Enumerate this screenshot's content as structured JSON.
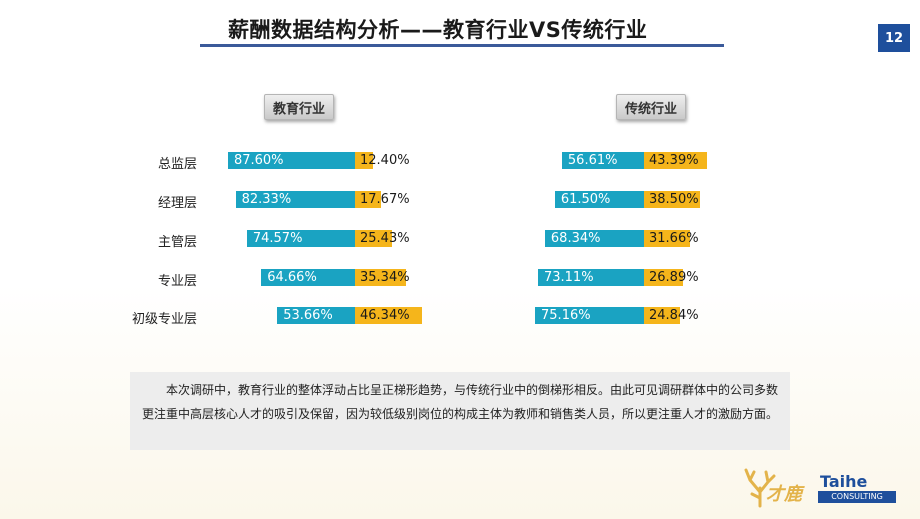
{
  "header": {
    "title": "薪酬数据结构分析——教育行业VS传统行业",
    "page_number": "12"
  },
  "colors": {
    "primary": "#1aa3c2",
    "secondary": "#f5b51b",
    "accent": "#1e4f9c"
  },
  "chart_data": [
    {
      "type": "bar",
      "subtype": "stacked-horizontal-100",
      "title": "教育行业",
      "categories": [
        "总监层",
        "经理层",
        "主管层",
        "专业层",
        "初级专业层"
      ],
      "series": [
        {
          "values": [
            87.6,
            82.33,
            74.57,
            64.66,
            53.66
          ],
          "labels": [
            "87.60%",
            "82.33%",
            "74.57%",
            "64.66%",
            "53.66%"
          ]
        },
        {
          "values": [
            12.4,
            17.67,
            25.43,
            35.34,
            46.34
          ],
          "labels": [
            "12.40%",
            "17.67%",
            "25.43%",
            "35.34%",
            "46.34%"
          ]
        }
      ]
    },
    {
      "type": "bar",
      "subtype": "stacked-horizontal-100",
      "title": "传统行业",
      "categories": [
        "总监层",
        "经理层",
        "主管层",
        "专业层",
        "初级专业层"
      ],
      "series": [
        {
          "values": [
            56.61,
            61.5,
            68.34,
            73.11,
            75.16
          ],
          "labels": [
            "56.61%",
            "61.50%",
            "68.34%",
            "73.11%",
            "75.16%"
          ]
        },
        {
          "values": [
            43.39,
            38.5,
            31.66,
            26.89,
            24.84
          ],
          "labels": [
            "43.39%",
            "38.50%",
            "31.66%",
            "26.89%",
            "24.84%"
          ]
        }
      ]
    }
  ],
  "note": {
    "text": "本次调研中，教育行业的整体浮动占比呈正梯形趋势，与传统行业中的倒梯形相反。由此可见调研群体中的公司多数更注重中高层核心人才的吸引及保留，因为较低级别岗位的构成主体为教师和销售类人员，所以更注重人才的激励方面。"
  },
  "logo": {
    "cn_text": "才鹿",
    "en_text": "Taihe",
    "sub_text": "CONSULTING"
  }
}
